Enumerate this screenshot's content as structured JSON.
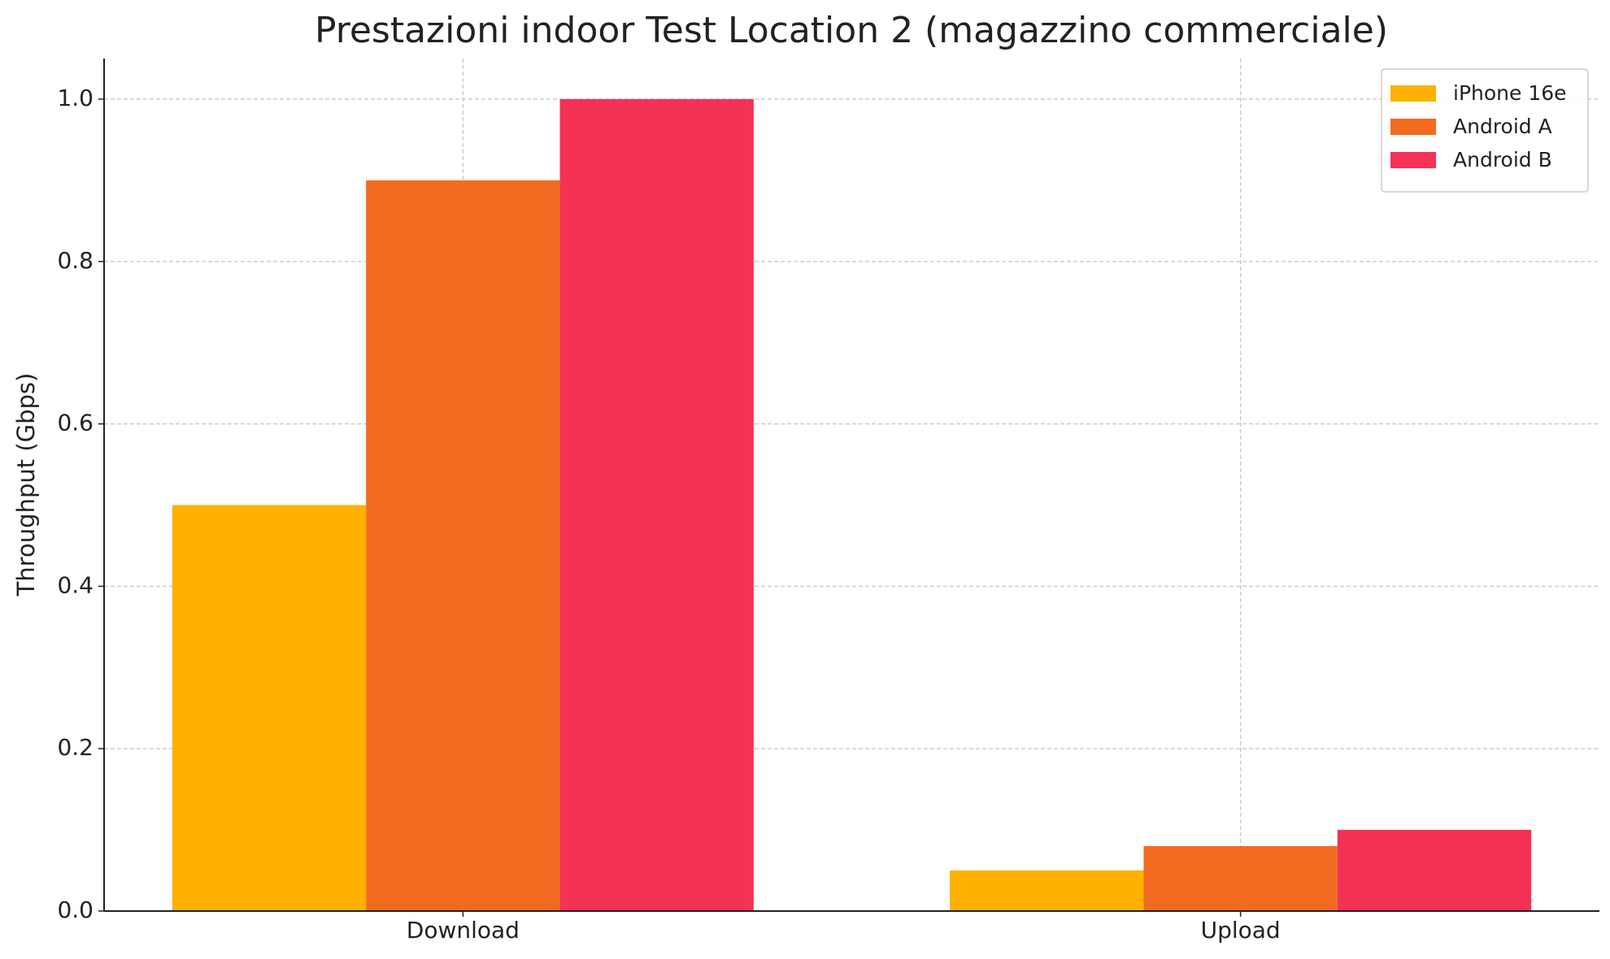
{
  "chart_data": {
    "type": "bar",
    "title": "Prestazioni indoor Test Location 2 (magazzino commerciale)",
    "y_label": "Throughput (Gbps)",
    "categories": [
      "Download",
      "Upload"
    ],
    "series": [
      {
        "name": "iPhone 16e",
        "color": "#ffb000",
        "values": [
          0.5,
          0.05
        ]
      },
      {
        "name": "Android A",
        "color": "#f26b21",
        "values": [
          0.9,
          0.08
        ]
      },
      {
        "name": "Android B",
        "color": "#f43256",
        "values": [
          1.0,
          0.1
        ]
      }
    ],
    "ylim": [
      0,
      1.05
    ],
    "yticks": [
      {
        "value": 0,
        "label": "0.0"
      },
      0.2,
      0.4,
      0.6,
      0.8,
      {
        "value": 1,
        "label": "1.0"
      }
    ],
    "grid": true,
    "legend": "upper right"
  }
}
